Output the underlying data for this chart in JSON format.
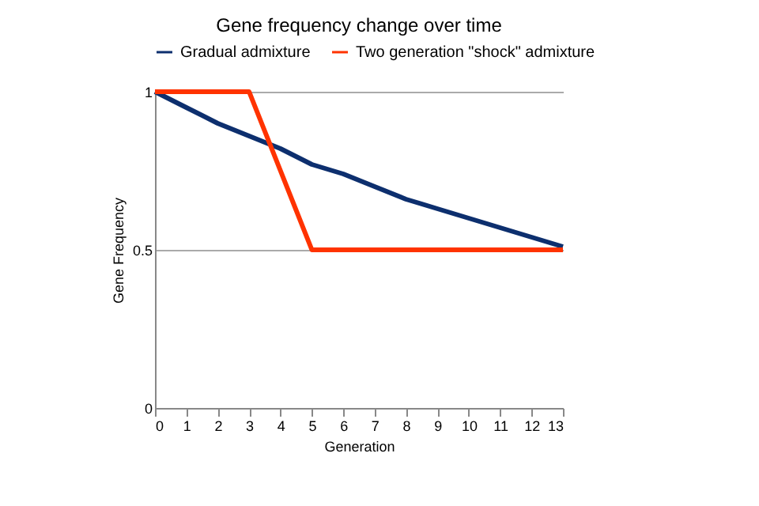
{
  "chart_data": {
    "type": "line",
    "title": "Gene frequency change over time",
    "xlabel": "Generation",
    "ylabel": "Gene Frequency",
    "x": [
      0,
      1,
      2,
      3,
      4,
      5,
      6,
      7,
      8,
      9,
      10,
      11,
      12,
      13
    ],
    "series": [
      {
        "name": "Gradual admixture",
        "color": "#0d2f6e",
        "values": [
          1,
          0.95,
          0.9,
          0.86,
          0.82,
          0.77,
          0.74,
          0.7,
          0.66,
          0.63,
          0.6,
          0.57,
          0.54,
          0.51
        ]
      },
      {
        "name": "Two generation \"shock\" admixture",
        "color": "#ff3300",
        "values": [
          1,
          1,
          1,
          1,
          0.75,
          0.5,
          0.5,
          0.5,
          0.5,
          0.5,
          0.5,
          0.5,
          0.5,
          0.5
        ]
      }
    ],
    "xlim": [
      0,
      13
    ],
    "xticks": [
      0,
      1,
      2,
      3,
      4,
      5,
      6,
      7,
      8,
      9,
      10,
      11,
      12,
      13
    ],
    "ylim": [
      0,
      1
    ],
    "yticks": [
      0,
      0.5,
      1
    ],
    "grid": "y",
    "legend": "top",
    "marker": "none",
    "line_style": "solid"
  }
}
